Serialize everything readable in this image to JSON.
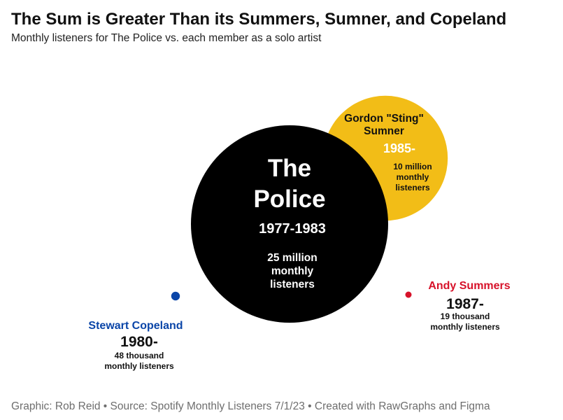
{
  "title": "The Sum is Greater Than its Summers, Sumner, and Copeland",
  "subtitle": "Monthly listeners for The Police vs. each member as a solo artist",
  "footer": "Graphic: Rob Reid • Source: Spotify Monthly Listeners 7/1/23 • Created with RawGraphs and Figma",
  "chart_data": {
    "type": "bubble",
    "unit": "monthly listeners",
    "series": [
      {
        "id": "police",
        "name_lines": [
          "The",
          "Police"
        ],
        "years": "1977-1983",
        "listeners": 25000000,
        "value_lines": [
          "25 million",
          "monthly",
          "listeners"
        ],
        "color": "#000000",
        "text_color": "#ffffff"
      },
      {
        "id": "sting",
        "name_lines": [
          "Gordon \"Sting\"",
          "Sumner"
        ],
        "years": "1985-",
        "listeners": 10000000,
        "value_lines": [
          "10 million",
          "monthly",
          "listeners"
        ],
        "color": "#f2bd17",
        "text_color": "#111111",
        "years_color": "#ffffff"
      },
      {
        "id": "summers",
        "name_lines": [
          "Andy Summers"
        ],
        "years": "1987-",
        "listeners": 19000,
        "value_lines": [
          "19 thousand",
          "monthly listeners"
        ],
        "color": "#d7122a",
        "text_color": "#111111",
        "name_color": "#d7122a"
      },
      {
        "id": "copeland",
        "name_lines": [
          "Stewart Copeland"
        ],
        "years": "1980-",
        "listeners": 48000,
        "value_lines": [
          "48 thousand",
          "monthly listeners"
        ],
        "color": "#0a45a8",
        "text_color": "#111111",
        "name_color": "#0a45a8"
      }
    ]
  }
}
